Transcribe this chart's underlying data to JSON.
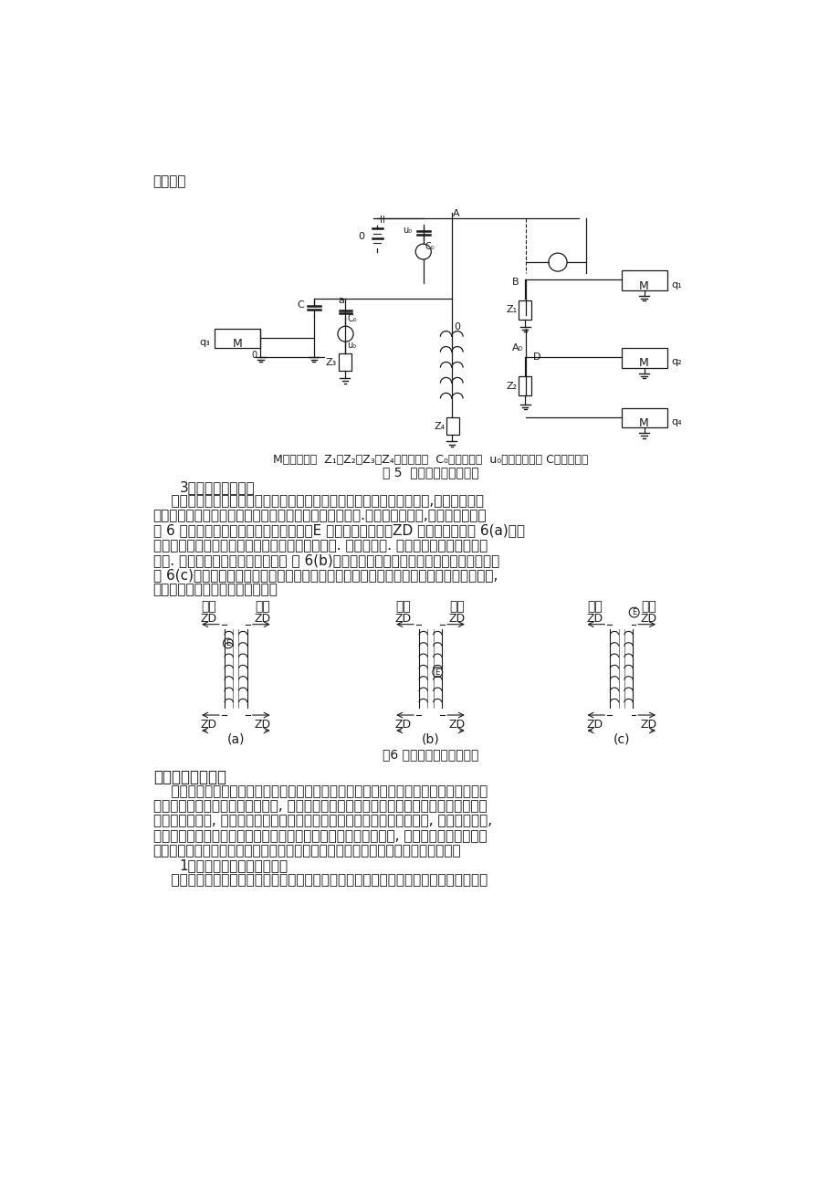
{
  "page_bg": "#ffffff",
  "font_color": "#1a1a1a",
  "top_text": "部位上。",
  "fig5_caption_line1": "M一测试仪器  Z₁、Z₂、Z₃、Z₄一测试阻抗  C₀一校正电容  u₀一方波发生器 C一耦合电容",
  "fig5_caption_line2": "图 5  多端测量－多端校正",
  "section3_heading": "3、脉冲极性鉴定法",
  "para1": "    变压器内部发生局放时在各个检测阻抗上发现的脉冲波都有一定的极性,根据这些脉冲",
  "para2": "的特征来确定局放发生的位置的方法就是脉冲极性鉴定法.该方法应用较多,而且直观方便。",
  "para3": "图 6 为脉冲极性法的原理和应用。图中：E 为假设的放电源。ZD 为测量阻抗；图 6(a)为高",
  "para4": "压和低压绕组之间发生局部放电时测得的脉冲极性. 即低压阻抗. 高压绕组阻抗测得的极性",
  "para5": "相同. 而高低压绕组测得的极性相反 图 6(b)为高压绕组中发生局部放电时测得的脉冲极性",
  "para6": "图 6(c)为高压绕组和地之间发生局部放电时测得的脉冲极性。将实测脉冲与校对脉冲对比,",
  "para7": "可以大体上确定放电发生的部位。",
  "fig6_label_a": "(a)",
  "fig6_label_b": "(b)",
  "fig6_label_c": "(c)",
  "fig6_caption": "图6 脉冲极性法测试原理图",
  "section3_title": "三、超声波检测法",
  "section3_para1": "    超声波检测定位法是大型电力变压器局部放电定位的主要方法。变压器中局部放电故障",
  "section3_para2": "的产生和发展将伴随着声发射现象, 放电源也就是声发射源。根据声测原理对变压器的内部",
  "section3_para3": "放电予以定位时, 可将若干个超声探头放置在变压器箱壳上相分离的几点上, 组成声测阵列,",
  "section3_para4": "测定出由声源到各探头的直接波传播时间或各探头之间的相对时差, 然后将这些时间或相对",
  "section3_para5": "时差代人满足该声测阵列几何关系的一组方程中求解，即可得到放电源的位置坐标。",
  "section3_sub1": "1、超声波局部放电测试原理",
  "section3_sub1_para": "    绝缘介质局部放电有两种类型：气泡内放电以及介质在高场强下游离击穿。一些浇注、"
}
